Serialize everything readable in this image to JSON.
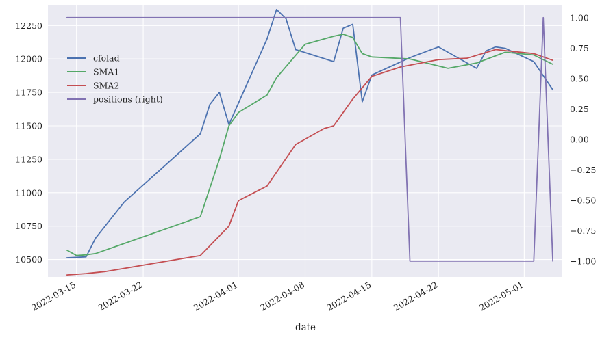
{
  "chart_data": {
    "type": "line",
    "title": "",
    "xlabel": "date",
    "ylabel": "",
    "ylabel_right": "",
    "x_ticks": [
      "2022-03-15",
      "2022-03-22",
      "2022-04-01",
      "2022-04-08",
      "2022-04-15",
      "2022-04-22",
      "2022-05-01"
    ],
    "x_range": [
      "2022-03-12",
      "2022-05-05"
    ],
    "y_left_ticks": [
      "10500",
      "10750",
      "11000",
      "11250",
      "11500",
      "11750",
      "12000",
      "12250"
    ],
    "y_left_range": [
      10370,
      12400
    ],
    "y_right_ticks": [
      "−1.00",
      "−0.75",
      "−0.50",
      "−0.25",
      "0.00",
      "0.25",
      "0.50",
      "0.75",
      "1.00"
    ],
    "y_right_range": [
      -1.13,
      1.1
    ],
    "grid": true,
    "legend_placement": "upper-left",
    "series": [
      {
        "name": "cfolad",
        "color": "#4c72b0",
        "axis": "left",
        "points": [
          [
            "2022-03-14",
            10513
          ],
          [
            "2022-03-16",
            10520
          ],
          [
            "2022-03-17",
            10660
          ],
          [
            "2022-03-20",
            10930
          ],
          [
            "2022-03-28",
            11440
          ],
          [
            "2022-03-29",
            11660
          ],
          [
            "2022-03-30",
            11750
          ],
          [
            "2022-03-31",
            11510
          ],
          [
            "2022-04-04",
            12150
          ],
          [
            "2022-04-05",
            12370
          ],
          [
            "2022-04-06",
            12300
          ],
          [
            "2022-04-07",
            12070
          ],
          [
            "2022-04-11",
            11980
          ],
          [
            "2022-04-12",
            12230
          ],
          [
            "2022-04-13",
            12260
          ],
          [
            "2022-04-14",
            11680
          ],
          [
            "2022-04-15",
            11880
          ],
          [
            "2022-04-19",
            12010
          ],
          [
            "2022-04-22",
            12090
          ],
          [
            "2022-04-26",
            11930
          ],
          [
            "2022-04-27",
            12060
          ],
          [
            "2022-04-28",
            12090
          ],
          [
            "2022-04-29",
            12080
          ],
          [
            "2022-05-02",
            11980
          ],
          [
            "2022-05-04",
            11770
          ]
        ]
      },
      {
        "name": "SMA1",
        "color": "#55a868",
        "axis": "left",
        "points": [
          [
            "2022-03-14",
            10570
          ],
          [
            "2022-03-15",
            10530
          ],
          [
            "2022-03-16",
            10535
          ],
          [
            "2022-03-17",
            10545
          ],
          [
            "2022-03-20",
            10620
          ],
          [
            "2022-03-28",
            10820
          ],
          [
            "2022-03-30",
            11250
          ],
          [
            "2022-03-31",
            11500
          ],
          [
            "2022-04-01",
            11600
          ],
          [
            "2022-04-04",
            11730
          ],
          [
            "2022-04-05",
            11860
          ],
          [
            "2022-04-08",
            12110
          ],
          [
            "2022-04-11",
            12170
          ],
          [
            "2022-04-12",
            12185
          ],
          [
            "2022-04-13",
            12160
          ],
          [
            "2022-04-14",
            12040
          ],
          [
            "2022-04-15",
            12015
          ],
          [
            "2022-04-19",
            12000
          ],
          [
            "2022-04-23",
            11930
          ],
          [
            "2022-04-26",
            11970
          ],
          [
            "2022-04-29",
            12050
          ],
          [
            "2022-05-02",
            12030
          ],
          [
            "2022-05-04",
            11960
          ]
        ]
      },
      {
        "name": "SMA2",
        "color": "#c44e52",
        "axis": "left",
        "points": [
          [
            "2022-03-14",
            10385
          ],
          [
            "2022-03-16",
            10395
          ],
          [
            "2022-03-18",
            10410
          ],
          [
            "2022-03-28",
            10530
          ],
          [
            "2022-03-31",
            10750
          ],
          [
            "2022-04-01",
            10940
          ],
          [
            "2022-04-04",
            11050
          ],
          [
            "2022-04-07",
            11360
          ],
          [
            "2022-04-10",
            11480
          ],
          [
            "2022-04-11",
            11500
          ],
          [
            "2022-04-13",
            11700
          ],
          [
            "2022-04-15",
            11870
          ],
          [
            "2022-04-18",
            11940
          ],
          [
            "2022-04-22",
            11995
          ],
          [
            "2022-04-25",
            12005
          ],
          [
            "2022-04-28",
            12070
          ],
          [
            "2022-05-02",
            12040
          ],
          [
            "2022-05-04",
            11990
          ]
        ]
      },
      {
        "name": "positions (right)",
        "color": "#8172b2",
        "axis": "right",
        "points": [
          [
            "2022-03-14",
            1
          ],
          [
            "2022-04-18",
            1
          ],
          [
            "2022-04-19",
            -1
          ],
          [
            "2022-05-02",
            -1
          ],
          [
            "2022-05-03",
            1
          ],
          [
            "2022-05-04",
            -1
          ]
        ]
      }
    ]
  }
}
